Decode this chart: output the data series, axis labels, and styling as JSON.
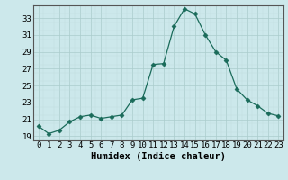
{
  "x": [
    0,
    1,
    2,
    3,
    4,
    5,
    6,
    7,
    8,
    9,
    10,
    11,
    12,
    13,
    14,
    15,
    16,
    17,
    18,
    19,
    20,
    21,
    22,
    23
  ],
  "y": [
    20.2,
    19.3,
    19.7,
    20.7,
    21.3,
    21.5,
    21.1,
    21.3,
    21.5,
    23.3,
    23.5,
    27.5,
    27.6,
    32.0,
    34.1,
    33.5,
    31.0,
    29.0,
    28.0,
    24.6,
    23.3,
    22.6,
    21.7,
    21.4
  ],
  "line_color": "#1a6b5a",
  "marker": "D",
  "marker_size": 2.5,
  "bg_color": "#cce8eb",
  "grid_major_color": "#aacccc",
  "grid_minor_color": "#c0dddd",
  "xlabel": "Humidex (Indice chaleur)",
  "xlim": [
    -0.5,
    23.5
  ],
  "ylim": [
    18.5,
    34.5
  ],
  "yticks": [
    19,
    21,
    23,
    25,
    27,
    29,
    31,
    33
  ],
  "xticks": [
    0,
    1,
    2,
    3,
    4,
    5,
    6,
    7,
    8,
    9,
    10,
    11,
    12,
    13,
    14,
    15,
    16,
    17,
    18,
    19,
    20,
    21,
    22,
    23
  ],
  "xlabel_fontsize": 7.5,
  "tick_fontsize": 6.5,
  "spine_color": "#555555"
}
